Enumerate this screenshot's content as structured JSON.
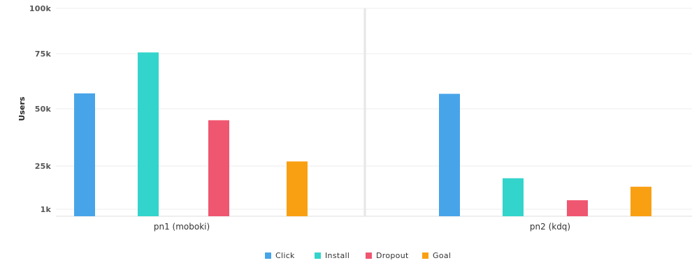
{
  "chart_data": {
    "type": "bar",
    "title": "",
    "xlabel": "",
    "ylabel": "Users",
    "categories": [
      "pn1 (moboki)",
      "pn2 (kdq)"
    ],
    "series": [
      {
        "name": "Click",
        "color": "#47a4e9",
        "values": [
          57000,
          56800
        ]
      },
      {
        "name": "Install",
        "color": "#33d4cb",
        "values": [
          75700,
          18200
        ]
      },
      {
        "name": "Dropout",
        "color": "#ef5670",
        "values": [
          45000,
          6000
        ]
      },
      {
        "name": "Goal",
        "color": "#f9a012",
        "values": [
          27000,
          13500
        ]
      }
    ],
    "y_ticks": [
      {
        "label": "1k",
        "value": 1000
      },
      {
        "label": "25k",
        "value": 25000
      },
      {
        "label": "50k",
        "value": 50000
      },
      {
        "label": "75k",
        "value": 75000
      },
      {
        "label": "100k",
        "value": 100000
      }
    ],
    "ylim": [
      1000,
      100000
    ],
    "grid": true,
    "legend_position": "bottom-center"
  }
}
